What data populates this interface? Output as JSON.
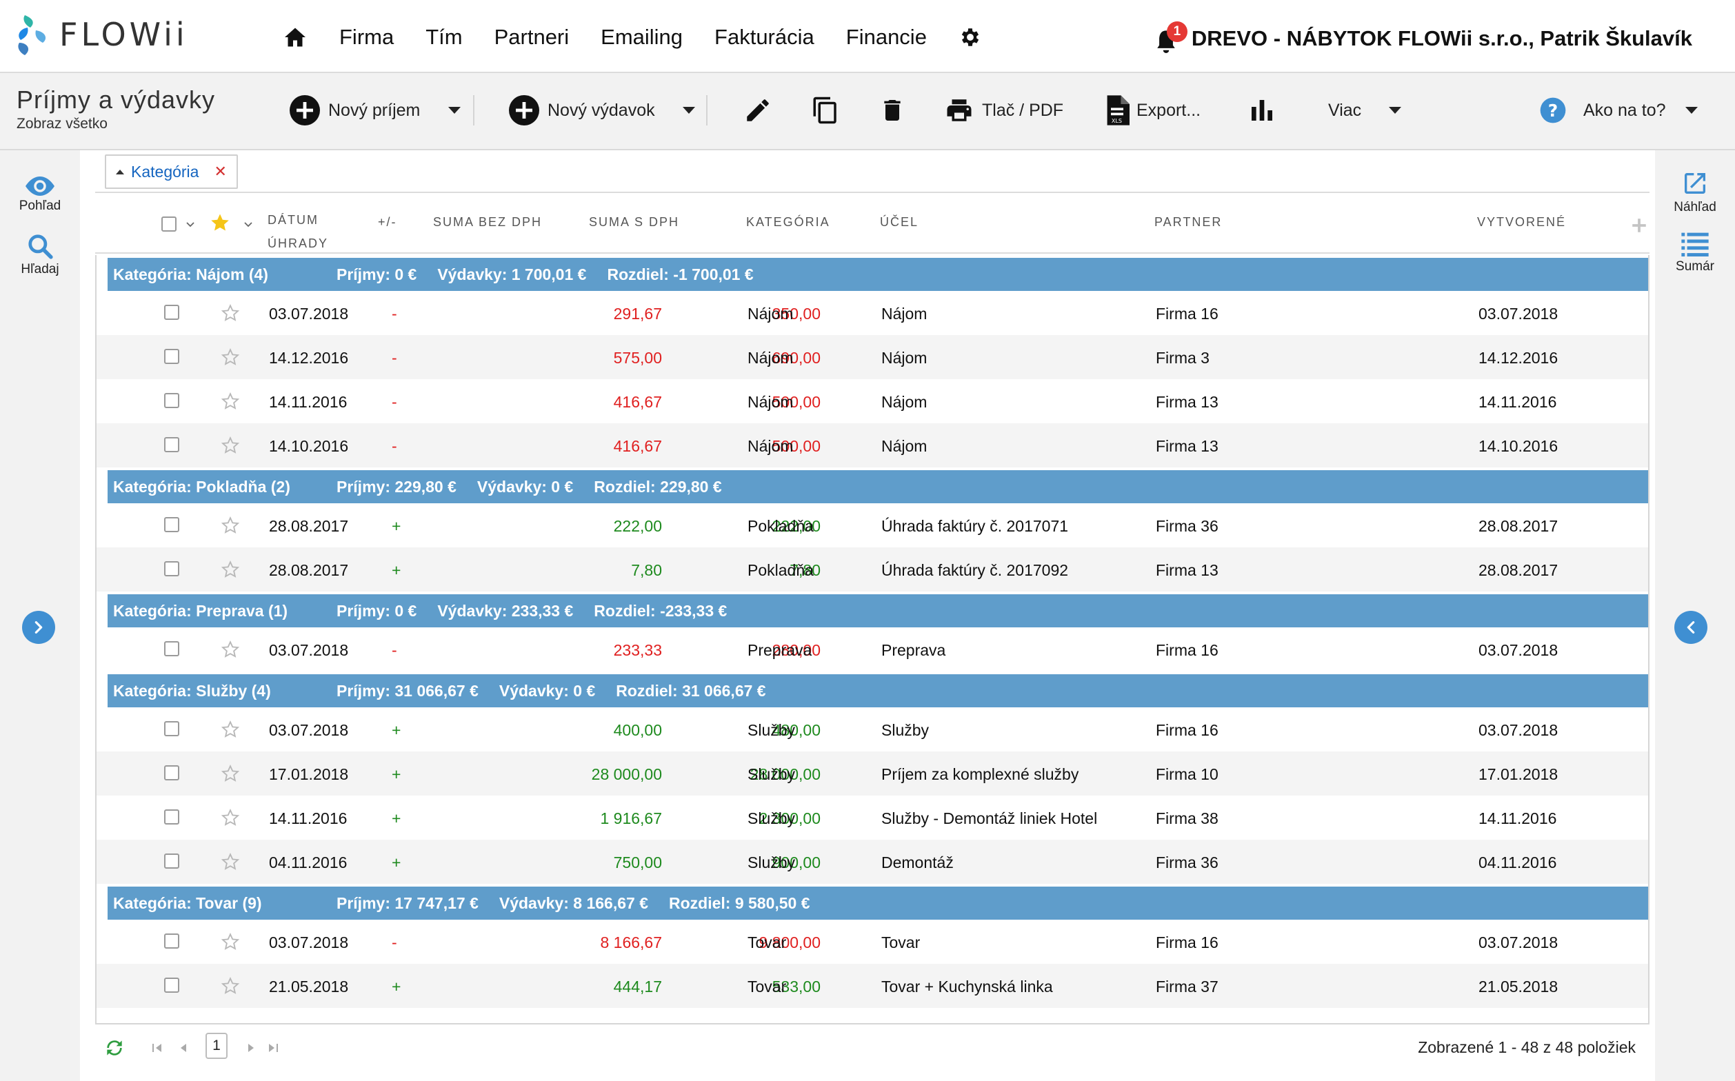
{
  "app": {
    "logo_text": "FLOWii"
  },
  "nav": {
    "items": [
      {
        "label": "Firma"
      },
      {
        "label": "Tím"
      },
      {
        "label": "Partneri"
      },
      {
        "label": "Emailing"
      },
      {
        "label": "Fakturácia"
      },
      {
        "label": "Financie"
      }
    ]
  },
  "user": {
    "notifications": "1",
    "company_user": "DREVO - NÁBYTOK FLOWii s.r.o., Patrik Škulavík"
  },
  "page": {
    "title": "Príjmy a výdavky",
    "subtitle": "Zobraz všetko"
  },
  "toolbar": {
    "new_income": "Nový príjem",
    "new_expense": "Nový výdavok",
    "print": "Tlač / PDF",
    "export": "Export...",
    "more": "Viac",
    "help": "Ako na to?"
  },
  "left_rail": {
    "view": "Pohľad",
    "search": "Hľadaj"
  },
  "right_rail": {
    "preview": "Náhľad",
    "summary": "Sumár"
  },
  "filter": {
    "chip": "Kategória"
  },
  "columns": {
    "date_line1": "DÁTUM",
    "date_line2": "ÚHRADY",
    "sign": "+/-",
    "sum_no_vat": "SUMA BEZ DPH",
    "sum_vat": "SUMA S DPH",
    "category": "KATEGÓRIA",
    "purpose": "ÚČEL",
    "partner": "PARTNER",
    "created": "VYTVORENÉ"
  },
  "groups": [
    {
      "title": "Kategória: Nájom (4)",
      "income": "Príjmy: 0 €",
      "expense": "Výdavky: 1 700,01 €",
      "diff": "Rozdiel: -1 700,01 €",
      "rows": [
        {
          "date": "03.07.2018",
          "sign": "-",
          "sum": "291,67",
          "sum_vat": "350,00",
          "category": "Nájom",
          "purpose": "Nájom",
          "partner": "Firma 16",
          "created": "03.07.2018"
        },
        {
          "date": "14.12.2016",
          "sign": "-",
          "sum": "575,00",
          "sum_vat": "690,00",
          "category": "Nájom",
          "purpose": "Nájom",
          "partner": "Firma 3",
          "created": "14.12.2016"
        },
        {
          "date": "14.11.2016",
          "sign": "-",
          "sum": "416,67",
          "sum_vat": "500,00",
          "category": "Nájom",
          "purpose": "Nájom",
          "partner": "Firma 13",
          "created": "14.11.2016"
        },
        {
          "date": "14.10.2016",
          "sign": "-",
          "sum": "416,67",
          "sum_vat": "500,00",
          "category": "Nájom",
          "purpose": "Nájom",
          "partner": "Firma 13",
          "created": "14.10.2016"
        }
      ]
    },
    {
      "title": "Kategória: Pokladňa (2)",
      "income": "Príjmy: 229,80 €",
      "expense": "Výdavky: 0 €",
      "diff": "Rozdiel: 229,80 €",
      "rows": [
        {
          "date": "28.08.2017",
          "sign": "+",
          "sum": "222,00",
          "sum_vat": "222,00",
          "category": "Pokladňa",
          "purpose": "Úhrada faktúry č. 2017071",
          "partner": "Firma 36",
          "created": "28.08.2017"
        },
        {
          "date": "28.08.2017",
          "sign": "+",
          "sum": "7,80",
          "sum_vat": "7,80",
          "category": "Pokladňa",
          "purpose": "Úhrada faktúry č. 2017092",
          "partner": "Firma 13",
          "created": "28.08.2017"
        }
      ]
    },
    {
      "title": "Kategória: Preprava (1)",
      "income": "Príjmy: 0 €",
      "expense": "Výdavky: 233,33 €",
      "diff": "Rozdiel: -233,33 €",
      "rows": [
        {
          "date": "03.07.2018",
          "sign": "-",
          "sum": "233,33",
          "sum_vat": "280,00",
          "category": "Preprava",
          "purpose": "Preprava",
          "partner": "Firma 16",
          "created": "03.07.2018"
        }
      ]
    },
    {
      "title": "Kategória: Služby (4)",
      "income": "Príjmy: 31 066,67 €",
      "expense": "Výdavky: 0 €",
      "diff": "Rozdiel: 31 066,67 €",
      "rows": [
        {
          "date": "03.07.2018",
          "sign": "+",
          "sum": "400,00",
          "sum_vat": "480,00",
          "category": "Služby",
          "purpose": "Služby",
          "partner": "Firma 16",
          "created": "03.07.2018"
        },
        {
          "date": "17.01.2018",
          "sign": "+",
          "sum": "28 000,00",
          "sum_vat": "28 000,00",
          "category": "Služby",
          "purpose": "Príjem za komplexné služby",
          "partner": "Firma 10",
          "created": "17.01.2018"
        },
        {
          "date": "14.11.2016",
          "sign": "+",
          "sum": "1 916,67",
          "sum_vat": "2 300,00",
          "category": "Služby",
          "purpose": "Služby - Demontáž liniek Hotel",
          "partner": "Firma 38",
          "created": "14.11.2016"
        },
        {
          "date": "04.11.2016",
          "sign": "+",
          "sum": "750,00",
          "sum_vat": "900,00",
          "category": "Služby",
          "purpose": "Demontáž",
          "partner": "Firma 36",
          "created": "04.11.2016"
        }
      ]
    },
    {
      "title": "Kategória: Tovar (9)",
      "income": "Príjmy: 17 747,17 €",
      "expense": "Výdavky: 8 166,67 €",
      "diff": "Rozdiel: 9 580,50 €",
      "rows": [
        {
          "date": "03.07.2018",
          "sign": "-",
          "sum": "8 166,67",
          "sum_vat": "9 800,00",
          "category": "Tovar",
          "purpose": "Tovar",
          "partner": "Firma 16",
          "created": "03.07.2018"
        },
        {
          "date": "21.05.2018",
          "sign": "+",
          "sum": "444,17",
          "sum_vat": "533,00",
          "category": "Tovar",
          "purpose": "Tovar + Kuchynská linka",
          "partner": "Firma 37",
          "created": "21.05.2018"
        }
      ]
    }
  ],
  "footer": {
    "page": "1",
    "items_info": "Zobrazené 1 - 48 z 48 položiek"
  },
  "colors": {
    "accent": "#3f8fd2",
    "group_header": "#5f9dcb",
    "negative": "#e02020",
    "positive": "#1e8a1e",
    "favorite": "#f5c518"
  },
  "icons": [
    "home-icon",
    "gear-icon",
    "bell-icon",
    "plus-circle-icon",
    "pencil-icon",
    "copy-icon",
    "trash-icon",
    "printer-icon",
    "xls-file-icon",
    "bar-chart-icon",
    "help-icon",
    "eye-icon",
    "search-icon",
    "external-link-icon",
    "list-icon",
    "star-icon",
    "refresh-icon"
  ]
}
